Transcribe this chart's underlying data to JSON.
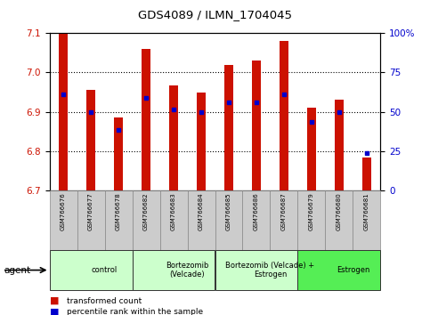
{
  "title": "GDS4089 / ILMN_1704045",
  "samples": [
    "GSM766676",
    "GSM766677",
    "GSM766678",
    "GSM766682",
    "GSM766683",
    "GSM766684",
    "GSM766685",
    "GSM766686",
    "GSM766687",
    "GSM766679",
    "GSM766680",
    "GSM766681"
  ],
  "bar_values": [
    7.1,
    6.955,
    6.885,
    7.06,
    6.968,
    6.95,
    7.02,
    7.03,
    7.08,
    6.91,
    6.93,
    6.785
  ],
  "blue_dot_values": [
    6.945,
    6.9,
    6.855,
    6.935,
    6.905,
    6.9,
    6.925,
    6.925,
    6.945,
    6.875,
    6.9,
    6.795
  ],
  "ylim_min": 6.7,
  "ylim_max": 7.1,
  "groups": [
    {
      "label": "control",
      "start": 0,
      "end": 3
    },
    {
      "label": "Bortezomib\n(Velcade)",
      "start": 3,
      "end": 6
    },
    {
      "label": "Bortezomib (Velcade) +\nEstrogen",
      "start": 6,
      "end": 9
    },
    {
      "label": "Estrogen",
      "start": 9,
      "end": 12
    }
  ],
  "bar_color": "#cc1100",
  "dot_color": "#0000cc",
  "yticks_left": [
    6.7,
    6.8,
    6.9,
    7.0,
    7.1
  ],
  "yticks_right": [
    0,
    25,
    50,
    75,
    100
  ],
  "ytick_right_labels": [
    "0",
    "25",
    "50",
    "75",
    "100%"
  ],
  "ylabel_left_color": "#cc1100",
  "ylabel_right_color": "#0000cc",
  "grid_lines": [
    6.8,
    6.9,
    7.0
  ],
  "agent_label": "agent",
  "group_colors": [
    "#ccffcc",
    "#ccffcc",
    "#ccffcc",
    "#55ee55"
  ]
}
